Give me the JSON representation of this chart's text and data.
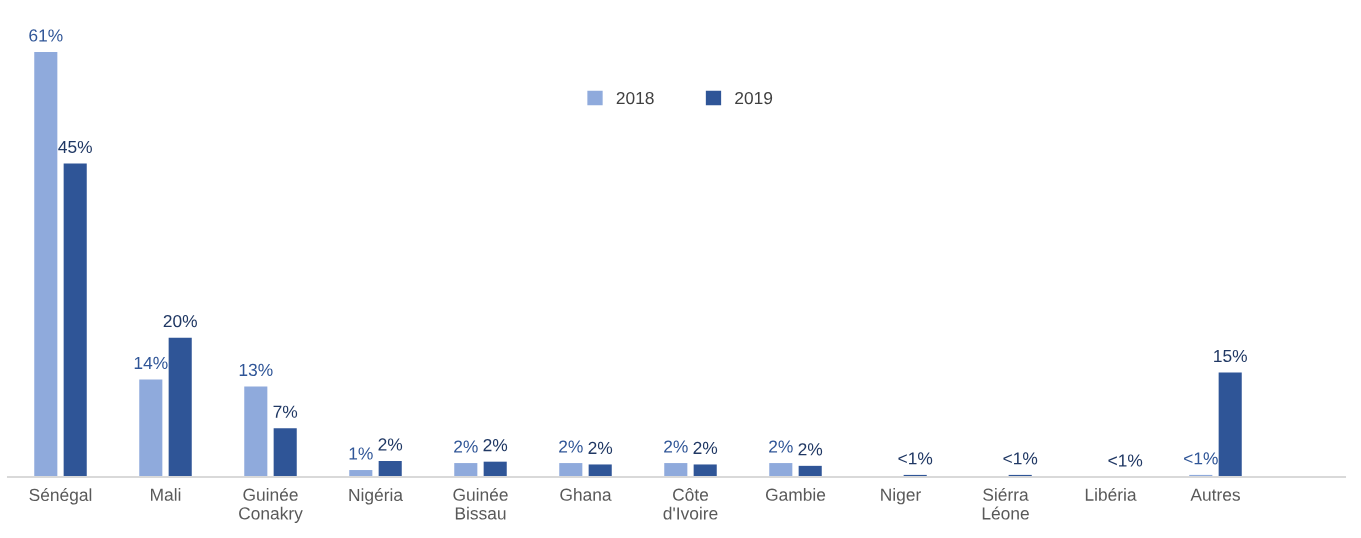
{
  "chart_data": {
    "type": "bar",
    "categories": [
      "Sénégal",
      "Mali",
      "Guinée\nConakry",
      "Nigéria",
      "Guinée\nBissau",
      "Ghana",
      "Côte\nd'Ivoire",
      "Gambie",
      "Niger",
      "Siérra\nLéone",
      "Libéria",
      "Autres"
    ],
    "series": [
      {
        "name": "2018",
        "color": "#8faadc",
        "values": [
          61,
          14,
          13,
          1,
          2,
          2,
          2,
          2,
          null,
          null,
          null,
          0.3
        ],
        "value_labels": [
          "61%",
          "14%",
          "13%",
          "1%",
          "2%",
          "2%",
          "2%",
          "2%",
          null,
          null,
          null,
          "<1%"
        ]
      },
      {
        "name": "2019",
        "color": "#2f5597",
        "values": [
          45,
          20,
          7,
          2.3,
          2.2,
          1.8,
          1.8,
          1.6,
          0.3,
          0.3,
          0,
          15
        ],
        "value_labels": [
          "45%",
          "20%",
          "7%",
          "2%",
          "2%",
          "2%",
          "2%",
          "2%",
          "<1%",
          "<1%",
          "<1%",
          "15%"
        ]
      }
    ],
    "legend": "top"
  }
}
